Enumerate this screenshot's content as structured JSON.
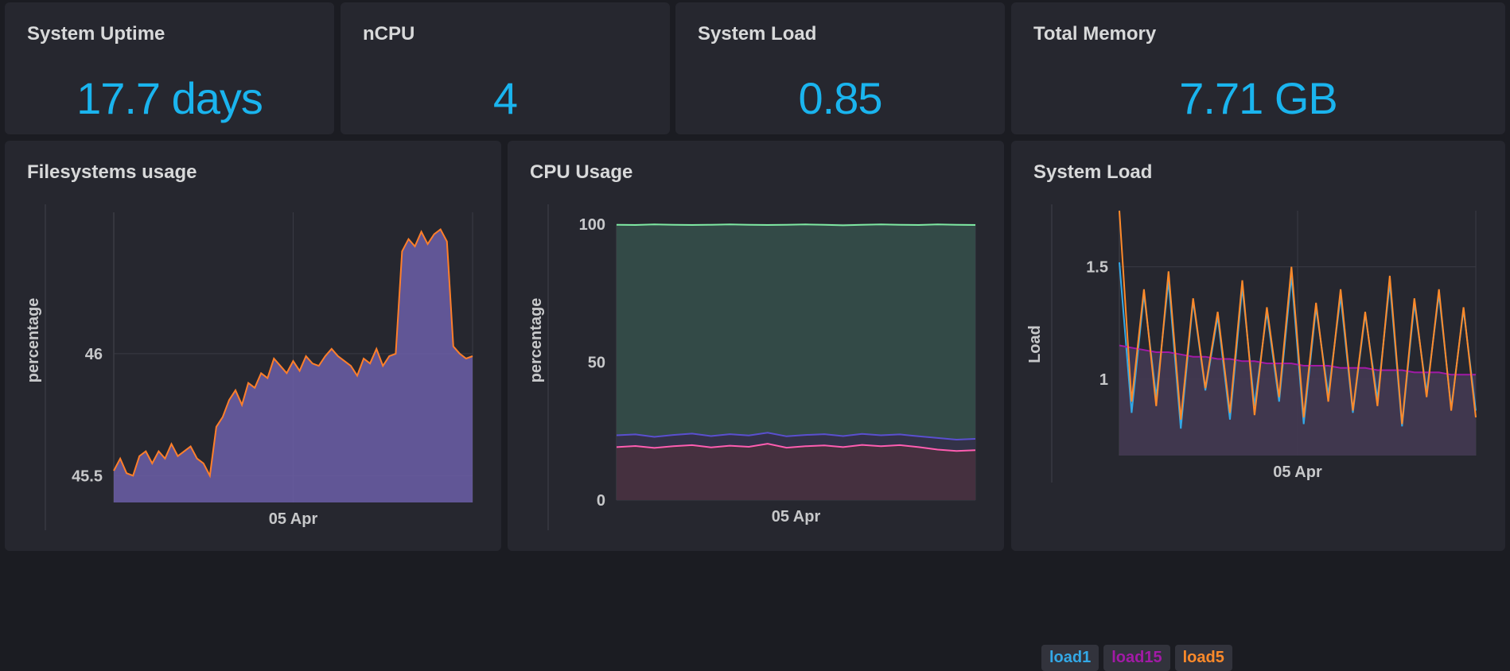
{
  "stats": [
    {
      "title": "System Uptime",
      "value": "17.7 days"
    },
    {
      "title": "nCPU",
      "value": "4"
    },
    {
      "title": "System Load",
      "value": "0.85"
    },
    {
      "title": "Total Memory",
      "value": "7.71 GB"
    }
  ],
  "colors": {
    "stat_value": "#1ab4ee",
    "fs_line": "#ff7f2a",
    "fs_fill": "#6c5fa8",
    "cpu_total": "#7ee8a2",
    "cpu_user": "#5a4fcf",
    "cpu_system": "#ff5db1",
    "load1": "#33a8e6",
    "load15": "#a21aa6",
    "load5": "#ff8a2a"
  },
  "chart_data": [
    {
      "type": "area",
      "title": "Filesystems usage",
      "ylabel": "percentage",
      "xlabel": "",
      "x_ticks": [
        "05 Apr"
      ],
      "y_ticks": [
        45.5,
        46
      ],
      "ylim": [
        45.39,
        46.58
      ],
      "series": [
        {
          "values": [
            45.52,
            45.57,
            45.51,
            45.5,
            45.58,
            45.6,
            45.55,
            45.6,
            45.57,
            45.63,
            45.58,
            45.6,
            45.62,
            45.57,
            45.55,
            45.5,
            45.7,
            45.74,
            45.81,
            45.85,
            45.79,
            45.88,
            45.86,
            45.92,
            45.9,
            45.98,
            45.95,
            45.92,
            45.97,
            45.93,
            45.99,
            45.96,
            45.95,
            45.99,
            46.02,
            45.99,
            45.97,
            45.95,
            45.91,
            45.98,
            45.96,
            46.02,
            45.95,
            45.99,
            46.0,
            46.42,
            46.47,
            46.44,
            46.5,
            46.45,
            46.49,
            46.51,
            46.46,
            46.03,
            46.0,
            45.98,
            45.99
          ],
          "line_color": "#ff7f2a"
        }
      ]
    },
    {
      "type": "area",
      "title": "CPU Usage",
      "ylabel": "percentage",
      "xlabel": "",
      "x_ticks": [
        "05 Apr"
      ],
      "y_ticks": [
        0,
        50,
        100
      ],
      "ylim": [
        0,
        100
      ],
      "series": [
        {
          "values": [
            99.8,
            99.7,
            99.9,
            99.8,
            99.7,
            99.8,
            99.9,
            99.8,
            99.7,
            99.8,
            99.9,
            99.8,
            99.6,
            99.8,
            99.9,
            99.8,
            99.7,
            99.9,
            99.8,
            99.7
          ],
          "color": "#7ee8a2"
        },
        {
          "values": [
            23.5,
            23.8,
            22.9,
            23.6,
            24.1,
            23.2,
            23.9,
            23.4,
            24.4,
            23.1,
            23.6,
            23.9,
            23.2,
            24.0,
            23.5,
            23.8,
            23.1,
            22.5,
            21.9,
            22.2
          ],
          "color": "#5a4fcf"
        },
        {
          "values": [
            19.2,
            19.6,
            18.9,
            19.5,
            19.9,
            19.1,
            19.7,
            19.3,
            20.4,
            19.0,
            19.5,
            19.8,
            19.2,
            20.0,
            19.5,
            19.9,
            19.2,
            18.3,
            17.8,
            18.1
          ],
          "color": "#ff5db1"
        }
      ]
    },
    {
      "type": "area",
      "title": "System Load",
      "ylabel": "Load",
      "xlabel": "",
      "x_ticks": [
        "05 Apr"
      ],
      "y_ticks": [
        1,
        1.5
      ],
      "ylim": [
        0.66,
        1.75
      ],
      "legend": [
        "load1",
        "load15",
        "load5"
      ],
      "series": [
        {
          "name": "load1",
          "values": [
            1.52,
            0.85,
            1.38,
            0.92,
            1.44,
            0.78,
            1.35,
            0.95,
            1.28,
            0.82,
            1.41,
            0.88,
            1.3,
            0.9,
            1.46,
            0.8,
            1.32,
            0.93,
            1.37,
            0.85,
            1.29,
            0.91,
            1.43,
            0.79,
            1.34,
            0.94,
            1.38,
            0.87,
            1.31,
            0.86
          ],
          "color": "#33a8e6"
        },
        {
          "name": "load15",
          "values": [
            1.15,
            1.14,
            1.13,
            1.12,
            1.12,
            1.11,
            1.1,
            1.1,
            1.09,
            1.09,
            1.08,
            1.08,
            1.07,
            1.07,
            1.07,
            1.06,
            1.06,
            1.06,
            1.05,
            1.05,
            1.05,
            1.04,
            1.04,
            1.04,
            1.03,
            1.03,
            1.03,
            1.02,
            1.02,
            1.02
          ],
          "color": "#a21aa6"
        },
        {
          "name": "load5",
          "values": [
            1.75,
            0.9,
            1.4,
            0.88,
            1.48,
            0.82,
            1.36,
            0.96,
            1.3,
            0.85,
            1.44,
            0.84,
            1.32,
            0.92,
            1.5,
            0.83,
            1.34,
            0.9,
            1.4,
            0.86,
            1.3,
            0.88,
            1.46,
            0.8,
            1.36,
            0.92,
            1.4,
            0.86,
            1.32,
            0.83
          ],
          "color": "#ff8a2a"
        }
      ]
    }
  ]
}
